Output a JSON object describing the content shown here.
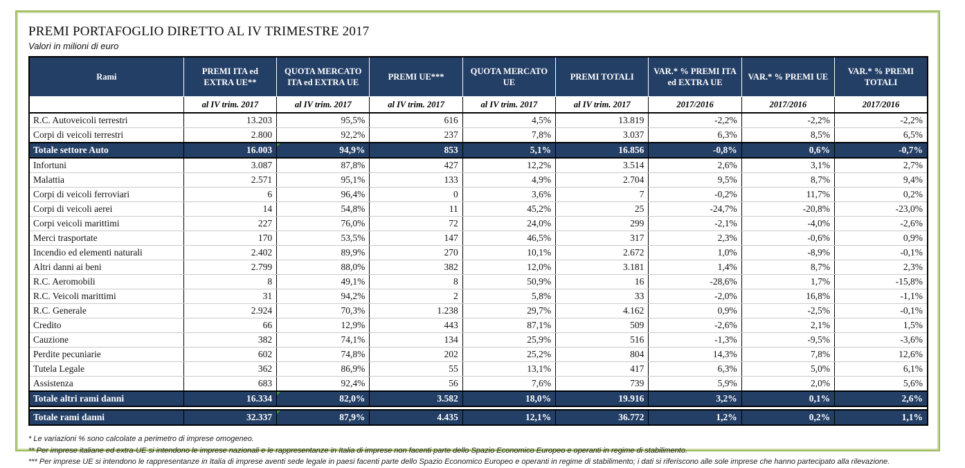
{
  "page": {
    "title": "PREMI PORTAFOGLIO DIRETTO AL IV TRIMESTRE 2017",
    "subtitle": "Valori in milioni di euro"
  },
  "colors": {
    "header_navy": "#243f66",
    "frame_green": "#9cb85a",
    "marker_green": "#35a032"
  },
  "table": {
    "columns": [
      {
        "label": "Rami",
        "sub": ""
      },
      {
        "label": "PREMI ITA ed EXTRA UE**",
        "sub": "al IV trim. 2017"
      },
      {
        "label": "QUOTA MERCATO ITA ed EXTRA UE",
        "sub": "al IV trim. 2017"
      },
      {
        "label": "PREMI UE***",
        "sub": "al IV trim. 2017"
      },
      {
        "label": "QUOTA MERCATO UE",
        "sub": "al IV trim. 2017"
      },
      {
        "label": "PREMI TOTALI",
        "sub": "al IV trim. 2017"
      },
      {
        "label": "VAR.* % PREMI ITA ed EXTRA UE",
        "sub": "2017/2016"
      },
      {
        "label": "VAR.* % PREMI UE",
        "sub": "2017/2016"
      },
      {
        "label": "VAR.* % PREMI TOTALI",
        "sub": "2017/2016"
      }
    ],
    "rows": [
      {
        "type": "data",
        "label": "R.C. Autoveicoli terrestri",
        "values": [
          "13.203",
          "95,5%",
          "616",
          "4,5%",
          "13.819",
          "-2,2%",
          "-2,2%",
          "-2,2%"
        ]
      },
      {
        "type": "data",
        "label": "Corpi di veicoli terrestri",
        "values": [
          "2.800",
          "92,2%",
          "237",
          "7,8%",
          "3.037",
          "6,3%",
          "8,5%",
          "6,5%"
        ]
      },
      {
        "type": "total",
        "label": "Totale settore Auto",
        "values": [
          "16.003",
          "94,9%",
          "853",
          "5,1%",
          "16.856",
          "-0,8%",
          "0,6%",
          "-0,7%"
        ],
        "marker_value_index": 1
      },
      {
        "type": "data",
        "label": "Infortuni",
        "values": [
          "3.087",
          "87,8%",
          "427",
          "12,2%",
          "3.514",
          "2,6%",
          "3,1%",
          "2,7%"
        ]
      },
      {
        "type": "data",
        "label": "Malattia",
        "values": [
          "2.571",
          "95,1%",
          "133",
          "4,9%",
          "2.704",
          "9,5%",
          "8,7%",
          "9,4%"
        ]
      },
      {
        "type": "data",
        "label": "Corpi di veicoli ferroviari",
        "values": [
          "6",
          "96,4%",
          "0",
          "3,6%",
          "7",
          "-0,2%",
          "11,7%",
          "0,2%"
        ]
      },
      {
        "type": "data",
        "label": "Corpi di veicoli aerei",
        "values": [
          "14",
          "54,8%",
          "11",
          "45,2%",
          "25",
          "-24,7%",
          "-20,8%",
          "-23,0%"
        ]
      },
      {
        "type": "data",
        "label": "Corpi veicoli marittimi",
        "values": [
          "227",
          "76,0%",
          "72",
          "24,0%",
          "299",
          "-2,1%",
          "-4,0%",
          "-2,6%"
        ]
      },
      {
        "type": "data",
        "label": "Merci trasportate",
        "values": [
          "170",
          "53,5%",
          "147",
          "46,5%",
          "317",
          "2,3%",
          "-0,6%",
          "0,9%"
        ]
      },
      {
        "type": "data",
        "label": "Incendio ed elementi naturali",
        "values": [
          "2.402",
          "89,9%",
          "270",
          "10,1%",
          "2.672",
          "1,0%",
          "-8,9%",
          "-0,1%"
        ]
      },
      {
        "type": "data",
        "label": "Altri danni ai beni",
        "values": [
          "2.799",
          "88,0%",
          "382",
          "12,0%",
          "3.181",
          "1,4%",
          "8,7%",
          "2,3%"
        ]
      },
      {
        "type": "data",
        "label": "R.C. Aeromobili",
        "values": [
          "8",
          "49,1%",
          "8",
          "50,9%",
          "16",
          "-28,6%",
          "1,7%",
          "-15,8%"
        ]
      },
      {
        "type": "data",
        "label": "R.C. Veicoli marittimi",
        "values": [
          "31",
          "94,2%",
          "2",
          "5,8%",
          "33",
          "-2,0%",
          "16,8%",
          "-1,1%"
        ]
      },
      {
        "type": "data",
        "label": "R.C. Generale",
        "values": [
          "2.924",
          "70,3%",
          "1.238",
          "29,7%",
          "4.162",
          "0,9%",
          "-2,5%",
          "-0,1%"
        ]
      },
      {
        "type": "data",
        "label": "Credito",
        "values": [
          "66",
          "12,9%",
          "443",
          "87,1%",
          "509",
          "-2,6%",
          "2,1%",
          "1,5%"
        ]
      },
      {
        "type": "data",
        "label": "Cauzione",
        "values": [
          "382",
          "74,1%",
          "134",
          "25,9%",
          "516",
          "-1,3%",
          "-9,5%",
          "-3,6%"
        ]
      },
      {
        "type": "data",
        "label": "Perdite pecuniarie",
        "values": [
          "602",
          "74,8%",
          "202",
          "25,2%",
          "804",
          "14,3%",
          "7,8%",
          "12,6%"
        ]
      },
      {
        "type": "data",
        "label": "Tutela Legale",
        "values": [
          "362",
          "86,9%",
          "55",
          "13,1%",
          "417",
          "6,3%",
          "5,0%",
          "6,1%"
        ]
      },
      {
        "type": "data",
        "label": "Assistenza",
        "values": [
          "683",
          "92,4%",
          "56",
          "7,6%",
          "739",
          "5,9%",
          "2,0%",
          "5,6%"
        ]
      },
      {
        "type": "total",
        "label": "Totale altri rami danni",
        "values": [
          "16.334",
          "82,0%",
          "3.582",
          "18,0%",
          "19.916",
          "3,2%",
          "0,1%",
          "2,6%"
        ],
        "marker_value_index": 1
      },
      {
        "type": "grand",
        "label": "Totale rami danni",
        "values": [
          "32.337",
          "87,9%",
          "4.435",
          "12,1%",
          "36.772",
          "1,2%",
          "0,2%",
          "1,1%"
        ],
        "marker_value_index": 1
      }
    ]
  },
  "footnotes": [
    "* Le variazioni % sono calcolate a perimetro di imprese omogeneo.",
    "** Per imprese italiane ed extra-UE si intendono le imprese nazionali e le rappresentanze in Italia di imprese non facenti parte dello Spazio Economico Europeo e operanti in regime di stabilimento.",
    "*** Per imprese UE si intendono le rappresentanze in Italia di imprese aventi sede legale in paesi facenti parte dello Spazio Economico Europeo e operanti in regime di stabilimento; i dati si riferiscono alle sole imprese che hanno partecipato alla rilevazione."
  ]
}
